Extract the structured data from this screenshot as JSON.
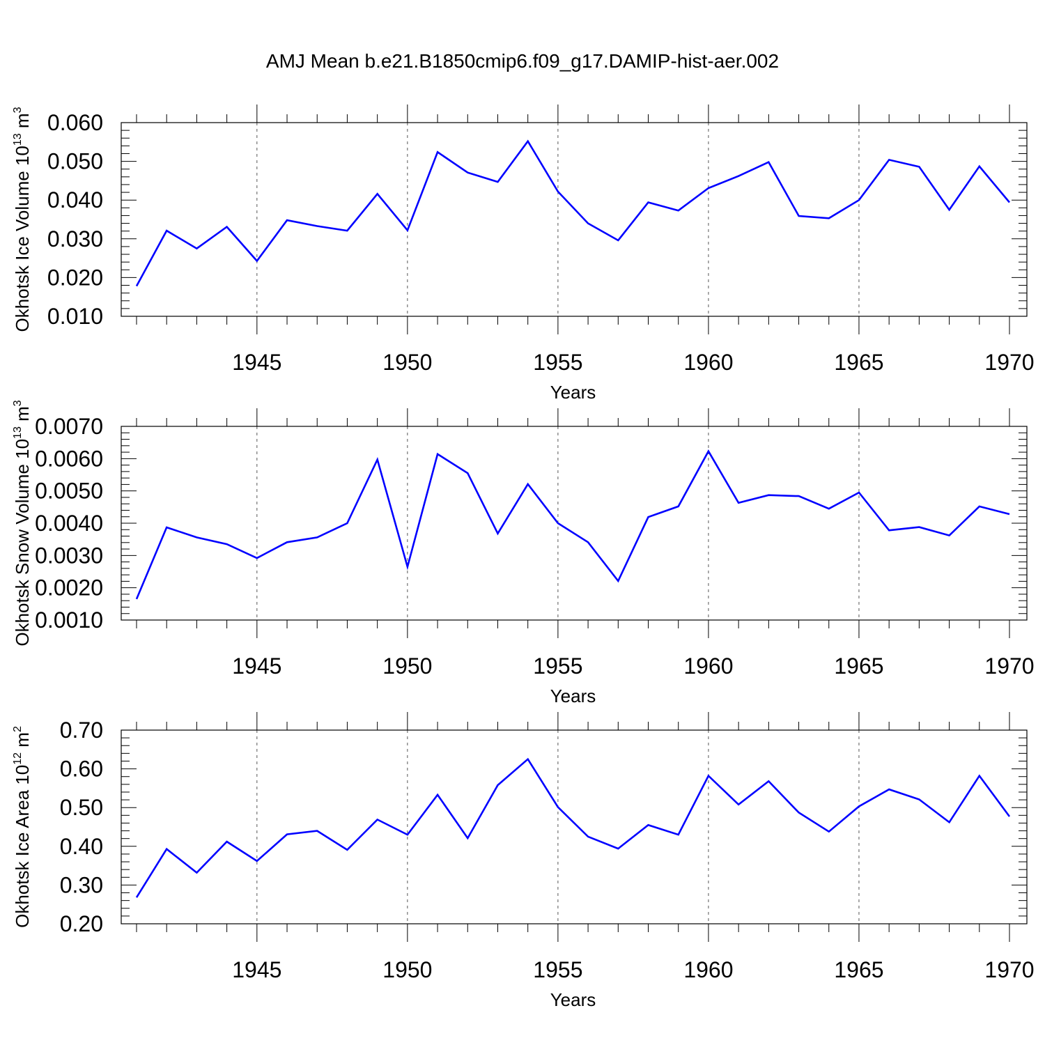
{
  "title": "AMJ Mean b.e21.B1850cmip6.f09_g17.DAMIP-hist-aer.002",
  "line_color": "#0000ff",
  "chart_data": [
    {
      "type": "line",
      "ylabel_main": "Okhotsk Ice Volume 10",
      "ylabel_exp": "13",
      "ylabel_unit": "m",
      "ylabel_unit_exp": "3",
      "xlabel": "Years",
      "xlim": [
        1941,
        1970
      ],
      "ylim": [
        0.01,
        0.06
      ],
      "x_ticks": [
        "1945",
        "1950",
        "1955",
        "1960",
        "1965",
        "1970"
      ],
      "y_ticks": [
        "0.010",
        "0.020",
        "0.030",
        "0.040",
        "0.050",
        "0.060"
      ],
      "x": [
        1941,
        1942,
        1943,
        1944,
        1945,
        1946,
        1947,
        1948,
        1949,
        1950,
        1951,
        1952,
        1953,
        1954,
        1955,
        1956,
        1957,
        1958,
        1959,
        1960,
        1961,
        1962,
        1963,
        1964,
        1965,
        1966,
        1967,
        1968,
        1969,
        1970
      ],
      "y": [
        0.0178,
        0.0321,
        0.0275,
        0.0331,
        0.0243,
        0.0348,
        0.0333,
        0.0321,
        0.0416,
        0.0322,
        0.0524,
        0.0471,
        0.0447,
        0.0552,
        0.0422,
        0.034,
        0.0296,
        0.0394,
        0.0373,
        0.0431,
        0.0462,
        0.0498,
        0.0359,
        0.0353,
        0.04,
        0.0504,
        0.0486,
        0.0375,
        0.0487,
        0.0394
      ]
    },
    {
      "type": "line",
      "ylabel_main": "Okhotsk Snow Volume 10",
      "ylabel_exp": "13",
      "ylabel_unit": "m",
      "ylabel_unit_exp": "3",
      "xlabel": "Years",
      "xlim": [
        1941,
        1970
      ],
      "ylim": [
        0.001,
        0.007
      ],
      "x_ticks": [
        "1945",
        "1950",
        "1955",
        "1960",
        "1965",
        "1970"
      ],
      "y_ticks": [
        "0.0010",
        "0.0020",
        "0.0030",
        "0.0040",
        "0.0050",
        "0.0060",
        "0.0070"
      ],
      "x": [
        1941,
        1942,
        1943,
        1944,
        1945,
        1946,
        1947,
        1948,
        1949,
        1950,
        1951,
        1952,
        1953,
        1954,
        1955,
        1956,
        1957,
        1958,
        1959,
        1960,
        1961,
        1962,
        1963,
        1964,
        1965,
        1966,
        1967,
        1968,
        1969,
        1970
      ],
      "y": [
        0.00165,
        0.00387,
        0.00356,
        0.00335,
        0.00292,
        0.00341,
        0.00356,
        0.004,
        0.00597,
        0.00265,
        0.00614,
        0.00555,
        0.00368,
        0.00521,
        0.004,
        0.00341,
        0.00221,
        0.00419,
        0.00452,
        0.00623,
        0.00463,
        0.00487,
        0.00484,
        0.00445,
        0.00495,
        0.00378,
        0.00388,
        0.00362,
        0.00452,
        0.00428
      ]
    },
    {
      "type": "line",
      "ylabel_main": "Okhotsk Ice Area 10",
      "ylabel_exp": "12",
      "ylabel_unit": "m",
      "ylabel_unit_exp": "2",
      "xlabel": "Years",
      "xlim": [
        1941,
        1970
      ],
      "ylim": [
        0.2,
        0.7
      ],
      "x_ticks": [
        "1945",
        "1950",
        "1955",
        "1960",
        "1965",
        "1970"
      ],
      "y_ticks": [
        "0.20",
        "0.30",
        "0.40",
        "0.50",
        "0.60",
        "0.70"
      ],
      "x": [
        1941,
        1942,
        1943,
        1944,
        1945,
        1946,
        1947,
        1948,
        1949,
        1950,
        1951,
        1952,
        1953,
        1954,
        1955,
        1956,
        1957,
        1958,
        1959,
        1960,
        1961,
        1962,
        1963,
        1964,
        1965,
        1966,
        1967,
        1968,
        1969,
        1970
      ],
      "y": [
        0.268,
        0.393,
        0.332,
        0.412,
        0.362,
        0.431,
        0.44,
        0.391,
        0.469,
        0.43,
        0.533,
        0.421,
        0.558,
        0.625,
        0.501,
        0.425,
        0.394,
        0.455,
        0.43,
        0.582,
        0.508,
        0.568,
        0.487,
        0.438,
        0.503,
        0.547,
        0.521,
        0.462,
        0.582,
        0.477
      ]
    }
  ]
}
